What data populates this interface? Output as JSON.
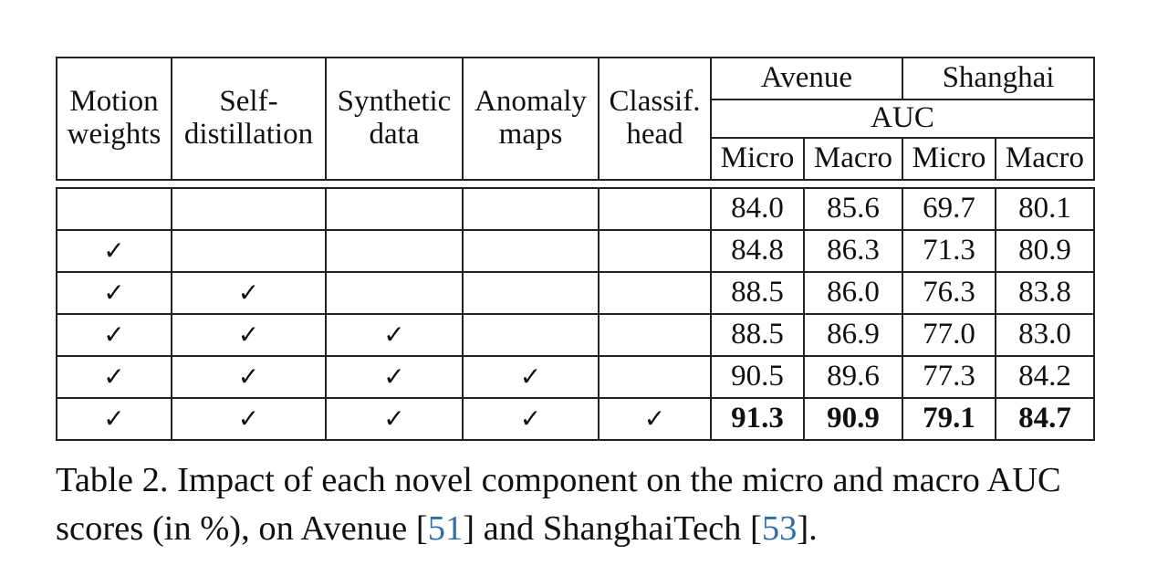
{
  "table": {
    "component_headers": [
      {
        "line1": "Motion",
        "line2": "weights"
      },
      {
        "line1": "Self-",
        "line2": "distillation"
      },
      {
        "line1": "Synthetic",
        "line2": "data"
      },
      {
        "line1": "Anomaly",
        "line2": "maps"
      },
      {
        "line1": "Classif.",
        "line2": "head"
      }
    ],
    "dataset_headers": [
      "Avenue",
      "Shanghai"
    ],
    "metric_header": "AUC",
    "sub_headers": [
      "Micro",
      "Macro",
      "Micro",
      "Macro"
    ],
    "check_glyph": "✓",
    "rows": [
      {
        "checks": [
          false,
          false,
          false,
          false,
          false
        ],
        "values": [
          "84.0",
          "85.6",
          "69.7",
          "80.1"
        ]
      },
      {
        "checks": [
          true,
          false,
          false,
          false,
          false
        ],
        "values": [
          "84.8",
          "86.3",
          "71.3",
          "80.9"
        ]
      },
      {
        "checks": [
          true,
          true,
          false,
          false,
          false
        ],
        "values": [
          "88.5",
          "86.0",
          "76.3",
          "83.8"
        ]
      },
      {
        "checks": [
          true,
          true,
          true,
          false,
          false
        ],
        "values": [
          "88.5",
          "86.9",
          "77.0",
          "83.0"
        ]
      },
      {
        "checks": [
          true,
          true,
          true,
          true,
          false
        ],
        "values": [
          "90.5",
          "89.6",
          "77.3",
          "84.2"
        ]
      },
      {
        "checks": [
          true,
          true,
          true,
          true,
          true
        ],
        "values": [
          "91.3",
          "90.9",
          "79.1",
          "84.7"
        ]
      }
    ]
  },
  "caption": {
    "part1": "Table 2. Impact of each novel component on the micro and macro AUC scores (in %), on Avenue [",
    "ref1": "51",
    "part2": "] and ShanghaiTech [",
    "ref2": "53",
    "part3": "]."
  }
}
